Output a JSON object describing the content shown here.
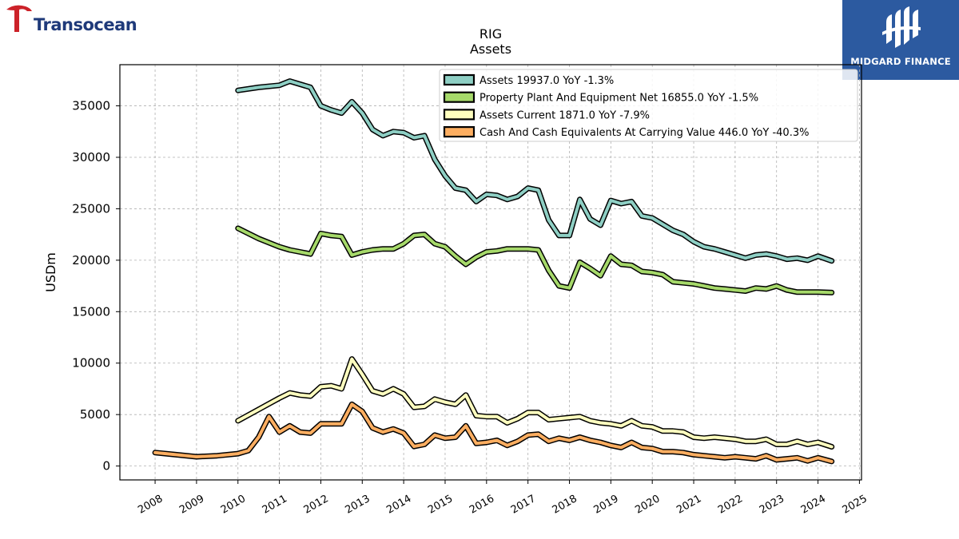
{
  "logos": {
    "left_brand": "Transocean",
    "right_brand": "MIDGARD FINANCE"
  },
  "colors": {
    "accent_red": "#cc2229",
    "brand_navy": "#1f3a7a",
    "midgard_blue": "#2c5aa0"
  },
  "chart_data": {
    "type": "line",
    "title": "RIG",
    "subtitle": "Assets",
    "xlabel": "",
    "ylabel": "USDm",
    "xlim": [
      2007.15,
      2025.05
    ],
    "ylim": [
      -1350,
      39000
    ],
    "grid": true,
    "legend_position": "top-right",
    "x_ticks": [
      "2008",
      "2009",
      "2010",
      "2011",
      "2012",
      "2013",
      "2014",
      "2015",
      "2016",
      "2017",
      "2018",
      "2019",
      "2020",
      "2021",
      "2022",
      "2023",
      "2024",
      "2025"
    ],
    "y_ticks": [
      0,
      5000,
      10000,
      15000,
      20000,
      25000,
      30000,
      35000
    ],
    "series": [
      {
        "name": "Assets  19937.0 YoY -1.3%",
        "color": "#8ecfc4",
        "points": [
          [
            2010,
            36500
          ],
          [
            2010.5,
            36800
          ],
          [
            2011,
            37000
          ],
          [
            2011.25,
            37400
          ],
          [
            2011.5,
            37100
          ],
          [
            2011.75,
            36800
          ],
          [
            2012,
            35000
          ],
          [
            2012.25,
            34600
          ],
          [
            2012.5,
            34300
          ],
          [
            2012.75,
            35400
          ],
          [
            2013,
            34300
          ],
          [
            2013.25,
            32700
          ],
          [
            2013.5,
            32100
          ],
          [
            2013.75,
            32500
          ],
          [
            2014,
            32400
          ],
          [
            2014.25,
            31900
          ],
          [
            2014.5,
            32100
          ],
          [
            2014.75,
            29800
          ],
          [
            2015,
            28200
          ],
          [
            2015.25,
            27000
          ],
          [
            2015.5,
            26800
          ],
          [
            2015.75,
            25700
          ],
          [
            2016,
            26400
          ],
          [
            2016.25,
            26300
          ],
          [
            2016.5,
            25900
          ],
          [
            2016.75,
            26200
          ],
          [
            2017,
            27000
          ],
          [
            2017.25,
            26800
          ],
          [
            2017.5,
            23900
          ],
          [
            2017.75,
            22400
          ],
          [
            2018,
            22400
          ],
          [
            2018.25,
            25900
          ],
          [
            2018.5,
            24000
          ],
          [
            2018.75,
            23400
          ],
          [
            2019,
            25800
          ],
          [
            2019.25,
            25500
          ],
          [
            2019.5,
            25700
          ],
          [
            2019.75,
            24300
          ],
          [
            2020,
            24100
          ],
          [
            2020.25,
            23500
          ],
          [
            2020.5,
            22900
          ],
          [
            2020.75,
            22500
          ],
          [
            2021,
            21800
          ],
          [
            2021.25,
            21300
          ],
          [
            2021.5,
            21100
          ],
          [
            2021.75,
            20800
          ],
          [
            2022,
            20500
          ],
          [
            2022.25,
            20200
          ],
          [
            2022.5,
            20500
          ],
          [
            2022.75,
            20600
          ],
          [
            2023,
            20400
          ],
          [
            2023.25,
            20100
          ],
          [
            2023.5,
            20200
          ],
          [
            2023.75,
            20000
          ],
          [
            2024,
            20400
          ],
          [
            2024.33,
            19937
          ]
        ]
      },
      {
        "name": "Property Plant And Equipment Net  16855.0 YoY -1.5%",
        "color": "#a6d96a",
        "points": [
          [
            2010,
            23100
          ],
          [
            2010.5,
            22100
          ],
          [
            2011,
            21300
          ],
          [
            2011.25,
            21000
          ],
          [
            2011.5,
            20800
          ],
          [
            2011.75,
            20600
          ],
          [
            2012,
            22600
          ],
          [
            2012.25,
            22400
          ],
          [
            2012.5,
            22300
          ],
          [
            2012.75,
            20500
          ],
          [
            2013,
            20800
          ],
          [
            2013.25,
            21000
          ],
          [
            2013.5,
            21100
          ],
          [
            2013.75,
            21100
          ],
          [
            2014,
            21600
          ],
          [
            2014.25,
            22400
          ],
          [
            2014.5,
            22500
          ],
          [
            2014.75,
            21600
          ],
          [
            2015,
            21300
          ],
          [
            2015.25,
            20400
          ],
          [
            2015.5,
            19600
          ],
          [
            2015.75,
            20300
          ],
          [
            2016,
            20800
          ],
          [
            2016.25,
            20900
          ],
          [
            2016.5,
            21100
          ],
          [
            2016.75,
            21100
          ],
          [
            2017,
            21100
          ],
          [
            2017.25,
            21000
          ],
          [
            2017.5,
            19000
          ],
          [
            2017.75,
            17500
          ],
          [
            2018,
            17300
          ],
          [
            2018.25,
            19800
          ],
          [
            2018.5,
            19200
          ],
          [
            2018.75,
            18500
          ],
          [
            2019,
            20400
          ],
          [
            2019.25,
            19600
          ],
          [
            2019.5,
            19500
          ],
          [
            2019.75,
            18900
          ],
          [
            2020,
            18800
          ],
          [
            2020.25,
            18600
          ],
          [
            2020.5,
            17900
          ],
          [
            2020.75,
            17800
          ],
          [
            2021,
            17700
          ],
          [
            2021.25,
            17500
          ],
          [
            2021.5,
            17300
          ],
          [
            2021.75,
            17200
          ],
          [
            2022,
            17100
          ],
          [
            2022.25,
            17000
          ],
          [
            2022.5,
            17300
          ],
          [
            2022.75,
            17200
          ],
          [
            2023,
            17500
          ],
          [
            2023.25,
            17100
          ],
          [
            2023.5,
            16900
          ],
          [
            2023.75,
            16900
          ],
          [
            2024,
            16900
          ],
          [
            2024.33,
            16855
          ]
        ]
      },
      {
        "name": "Assets Current  1871.0 YoY -7.9%",
        "color": "#ffffbf",
        "points": [
          [
            2010,
            4400
          ],
          [
            2010.5,
            5500
          ],
          [
            2011,
            6600
          ],
          [
            2011.25,
            7100
          ],
          [
            2011.5,
            6900
          ],
          [
            2011.75,
            6800
          ],
          [
            2012,
            7700
          ],
          [
            2012.25,
            7800
          ],
          [
            2012.5,
            7500
          ],
          [
            2012.75,
            10400
          ],
          [
            2013,
            8900
          ],
          [
            2013.25,
            7300
          ],
          [
            2013.5,
            7000
          ],
          [
            2013.75,
            7500
          ],
          [
            2014,
            7000
          ],
          [
            2014.25,
            5700
          ],
          [
            2014.5,
            5800
          ],
          [
            2014.75,
            6500
          ],
          [
            2015,
            6200
          ],
          [
            2015.25,
            6000
          ],
          [
            2015.5,
            6900
          ],
          [
            2015.75,
            4900
          ],
          [
            2016,
            4800
          ],
          [
            2016.25,
            4800
          ],
          [
            2016.5,
            4200
          ],
          [
            2016.75,
            4600
          ],
          [
            2017,
            5200
          ],
          [
            2017.25,
            5200
          ],
          [
            2017.5,
            4500
          ],
          [
            2017.75,
            4600
          ],
          [
            2018,
            4700
          ],
          [
            2018.25,
            4800
          ],
          [
            2018.5,
            4400
          ],
          [
            2018.75,
            4200
          ],
          [
            2019,
            4100
          ],
          [
            2019.25,
            3900
          ],
          [
            2019.5,
            4400
          ],
          [
            2019.75,
            3900
          ],
          [
            2020,
            3800
          ],
          [
            2020.25,
            3400
          ],
          [
            2020.5,
            3400
          ],
          [
            2020.75,
            3300
          ],
          [
            2021,
            2800
          ],
          [
            2021.25,
            2700
          ],
          [
            2021.5,
            2800
          ],
          [
            2021.75,
            2700
          ],
          [
            2022,
            2600
          ],
          [
            2022.25,
            2400
          ],
          [
            2022.5,
            2400
          ],
          [
            2022.75,
            2600
          ],
          [
            2023,
            2100
          ],
          [
            2023.25,
            2100
          ],
          [
            2023.5,
            2400
          ],
          [
            2023.75,
            2100
          ],
          [
            2024,
            2300
          ],
          [
            2024.33,
            1871
          ]
        ]
      },
      {
        "name": "Cash And Cash Equivalents At Carrying Value  446.0 YoY -40.3%",
        "color": "#fdae61",
        "points": [
          [
            2008,
            1300
          ],
          [
            2008.5,
            1100
          ],
          [
            2009,
            900
          ],
          [
            2009.5,
            1000
          ],
          [
            2010,
            1200
          ],
          [
            2010.25,
            1500
          ],
          [
            2010.5,
            2800
          ],
          [
            2010.75,
            4800
          ],
          [
            2011,
            3300
          ],
          [
            2011.25,
            3900
          ],
          [
            2011.5,
            3300
          ],
          [
            2011.75,
            3200
          ],
          [
            2012,
            4100
          ],
          [
            2012.25,
            4100
          ],
          [
            2012.5,
            4100
          ],
          [
            2012.75,
            6000
          ],
          [
            2013,
            5300
          ],
          [
            2013.25,
            3700
          ],
          [
            2013.5,
            3300
          ],
          [
            2013.75,
            3600
          ],
          [
            2014,
            3200
          ],
          [
            2014.25,
            1900
          ],
          [
            2014.5,
            2100
          ],
          [
            2014.75,
            3000
          ],
          [
            2015,
            2700
          ],
          [
            2015.25,
            2800
          ],
          [
            2015.5,
            3900
          ],
          [
            2015.75,
            2200
          ],
          [
            2016,
            2300
          ],
          [
            2016.25,
            2500
          ],
          [
            2016.5,
            2000
          ],
          [
            2016.75,
            2400
          ],
          [
            2017,
            3000
          ],
          [
            2017.25,
            3100
          ],
          [
            2017.5,
            2400
          ],
          [
            2017.75,
            2700
          ],
          [
            2018,
            2500
          ],
          [
            2018.25,
            2800
          ],
          [
            2018.5,
            2500
          ],
          [
            2018.75,
            2300
          ],
          [
            2019,
            2000
          ],
          [
            2019.25,
            1800
          ],
          [
            2019.5,
            2300
          ],
          [
            2019.75,
            1800
          ],
          [
            2020,
            1700
          ],
          [
            2020.25,
            1400
          ],
          [
            2020.5,
            1400
          ],
          [
            2020.75,
            1300
          ],
          [
            2021,
            1100
          ],
          [
            2021.25,
            1000
          ],
          [
            2021.5,
            900
          ],
          [
            2021.75,
            800
          ],
          [
            2022,
            900
          ],
          [
            2022.25,
            800
          ],
          [
            2022.5,
            700
          ],
          [
            2022.75,
            1000
          ],
          [
            2023,
            600
          ],
          [
            2023.25,
            700
          ],
          [
            2023.5,
            800
          ],
          [
            2023.75,
            500
          ],
          [
            2024,
            800
          ],
          [
            2024.33,
            446
          ]
        ]
      }
    ]
  }
}
